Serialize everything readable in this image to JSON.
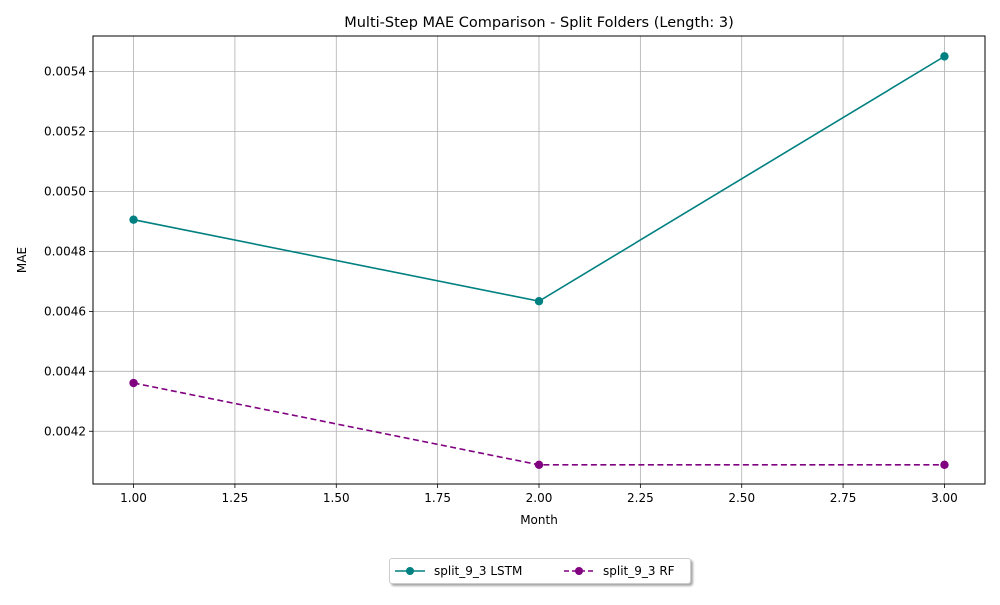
{
  "chart_data": {
    "type": "line",
    "title": "Multi-Step MAE Comparison - Split Folders (Length: 3)",
    "xlabel": "Month",
    "ylabel": "MAE",
    "x": [
      1.0,
      2.0,
      3.0
    ],
    "xlim": [
      0.9,
      3.1
    ],
    "ylim": [
      0.004024,
      0.005519
    ],
    "xticks": [
      "1.00",
      "1.25",
      "1.50",
      "1.75",
      "2.00",
      "2.25",
      "2.50",
      "2.75",
      "3.00"
    ],
    "xtick_values": [
      1.0,
      1.25,
      1.5,
      1.75,
      2.0,
      2.25,
      2.5,
      2.75,
      3.0
    ],
    "yticks": [
      "0.0042",
      "0.0044",
      "0.0046",
      "0.0048",
      "0.0050",
      "0.0052",
      "0.0054"
    ],
    "ytick_values": [
      0.0042,
      0.0044,
      0.0046,
      0.0048,
      0.005,
      0.0052,
      0.0054
    ],
    "grid": true,
    "legend_position": "bottom-center, below plot",
    "series": [
      {
        "name": "split_9_3 LSTM",
        "values": [
          0.004906,
          0.004634,
          0.005451
        ],
        "color": "#008080",
        "line_style": "solid",
        "marker": "circle"
      },
      {
        "name": "split_9_3 RF",
        "values": [
          0.004361,
          0.004088,
          0.004088
        ],
        "color": "#800080",
        "line_style": "dashed",
        "marker": "circle"
      }
    ]
  }
}
